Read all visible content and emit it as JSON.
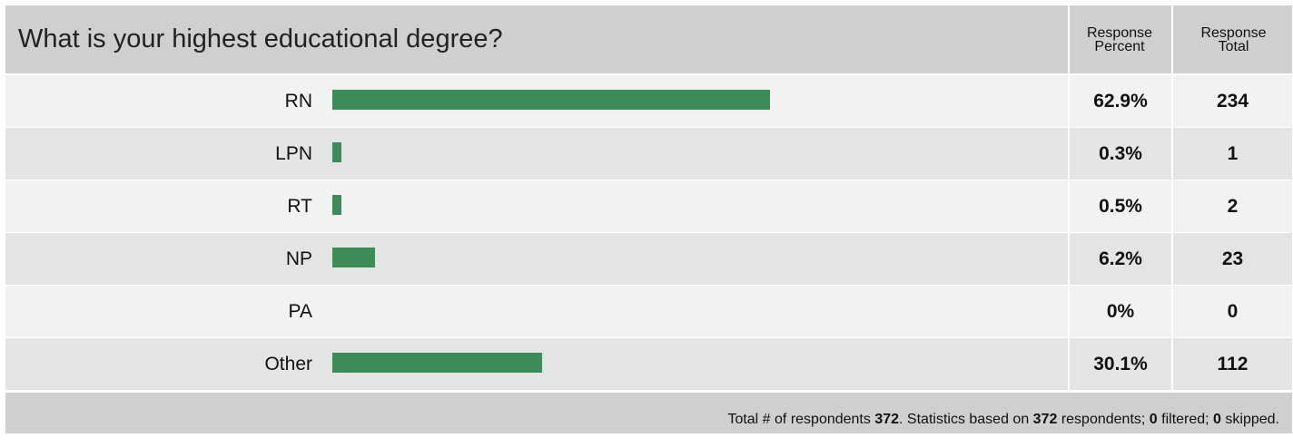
{
  "question": {
    "title": "What is your highest educational degree?"
  },
  "columns": {
    "percent_line1": "Response",
    "percent_line2": "Percent",
    "total_line1": "Response",
    "total_line2": "Total"
  },
  "rows": [
    {
      "label": "RN",
      "percent": "62.9%",
      "total": "234"
    },
    {
      "label": "LPN",
      "percent": "0.3%",
      "total": "1"
    },
    {
      "label": "RT",
      "percent": "0.5%",
      "total": "2"
    },
    {
      "label": "NP",
      "percent": "6.2%",
      "total": "23"
    },
    {
      "label": "PA",
      "percent": "0%",
      "total": "0"
    },
    {
      "label": "Other",
      "percent": "30.1%",
      "total": "112"
    }
  ],
  "footer": {
    "prefix": "Total # of respondents ",
    "respondents": "372",
    "middle": ". Statistics based on ",
    "based_on": "372",
    "after_based": " respondents; ",
    "filtered": "0",
    "after_filtered": " filtered; ",
    "skipped": "0",
    "after_skipped": " skipped."
  },
  "colors": {
    "bar": "#3d8b57",
    "row_light": "#f2f2f2",
    "row_dark": "#e4e4e4",
    "header": "#cfcfcf"
  },
  "chart_data": {
    "type": "bar",
    "categories": [
      "RN",
      "LPN",
      "RT",
      "NP",
      "PA",
      "Other"
    ],
    "values": [
      62.9,
      0.3,
      0.5,
      6.2,
      0,
      30.1
    ],
    "totals": [
      234,
      1,
      2,
      23,
      0,
      112
    ],
    "title": "What is your highest educational degree?",
    "xlabel": "",
    "ylabel": "",
    "orientation": "horizontal",
    "grid": false,
    "legend": "none"
  }
}
